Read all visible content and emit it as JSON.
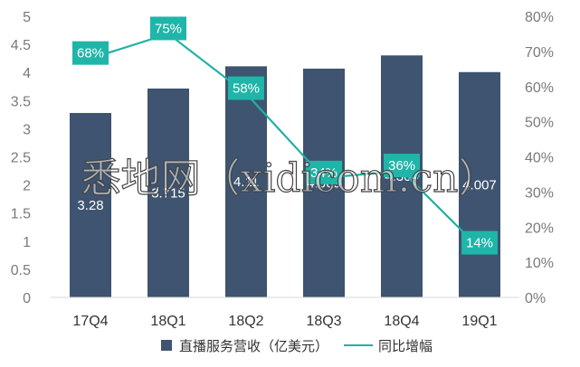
{
  "chart_data": {
    "type": "bar",
    "categories": [
      "17Q4",
      "18Q1",
      "18Q2",
      "18Q3",
      "18Q4",
      "19Q1"
    ],
    "series": [
      {
        "name": "直播服务营收（亿美元）",
        "type": "bar",
        "axis": "left",
        "values": [
          3.28,
          3.715,
          4.11,
          4.069,
          4.304,
          4.007
        ],
        "labels": [
          "3.28",
          "3.715",
          "4.11",
          "4.069",
          "4.304",
          "4.007"
        ]
      },
      {
        "name": "同比增幅",
        "type": "line",
        "axis": "right",
        "values": [
          68,
          75,
          58,
          34,
          36,
          14
        ],
        "labels": [
          "68%",
          "75%",
          "58%",
          "34%",
          "36%",
          "14%"
        ]
      }
    ],
    "y_left": {
      "min": 0,
      "max": 5,
      "ticks": [
        "0",
        "0.5",
        "1",
        "1.5",
        "2",
        "2.5",
        "3",
        "3.5",
        "4",
        "4.5",
        "5"
      ]
    },
    "y_right": {
      "min": 0,
      "max": 80,
      "ticks": [
        "0%",
        "10%",
        "20%",
        "30%",
        "40%",
        "50%",
        "60%",
        "70%",
        "80%"
      ]
    },
    "grid": false,
    "legend": "bottom",
    "colors": {
      "bar": "#3e5470",
      "line": "#22b0a6",
      "label_bg": "#1fb5a8"
    }
  },
  "watermark": "悉地网（xidicom.cn）"
}
